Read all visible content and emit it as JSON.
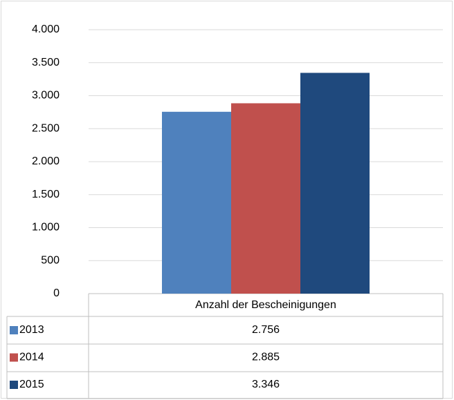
{
  "chart_data": {
    "type": "bar",
    "categories": [
      "Anzahl der Bescheinigungen"
    ],
    "series": [
      {
        "name": "2013",
        "color": "#4f81bd",
        "values": [
          2756
        ],
        "value_labels": [
          "2.756"
        ]
      },
      {
        "name": "2014",
        "color": "#c0504d",
        "values": [
          2885
        ],
        "value_labels": [
          "2.885"
        ]
      },
      {
        "name": "2015",
        "color": "#1f497d",
        "values": [
          3346
        ],
        "value_labels": [
          "3.346"
        ]
      }
    ],
    "ylim": [
      0,
      4000
    ],
    "yticks": [
      0,
      500,
      {
        "value": 1000,
        "label": "1.000"
      },
      {
        "value": 1500,
        "label": "1.500"
      },
      {
        "value": 2000,
        "label": "2.000"
      },
      {
        "value": 2500,
        "label": "2.500"
      },
      {
        "value": 3000,
        "label": "3.000"
      },
      {
        "value": 3500,
        "label": "3.500"
      },
      {
        "value": 4000,
        "label": "4.000"
      }
    ],
    "grid": true
  }
}
